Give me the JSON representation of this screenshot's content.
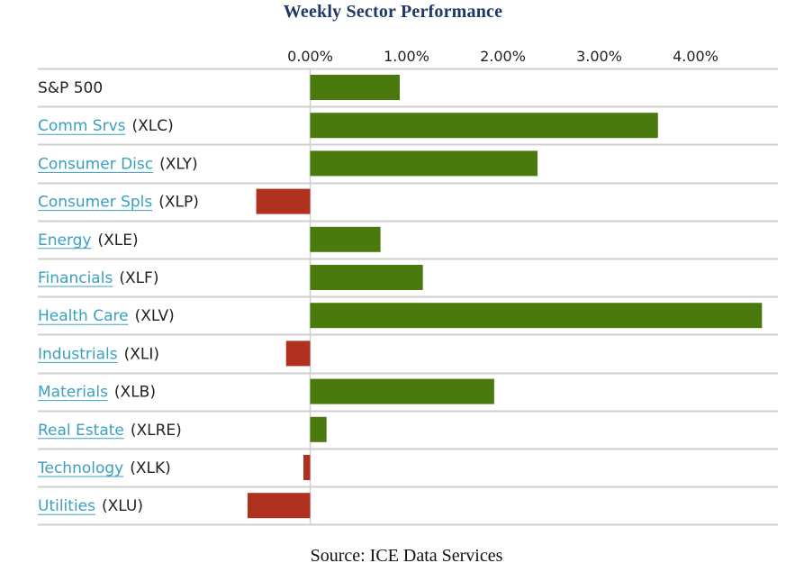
{
  "chart_data": {
    "type": "bar",
    "orientation": "horizontal",
    "title": "Weekly Sector Performance",
    "source": "Source: ICE Data Services",
    "xlim": [
      -0.03,
      0.0485
    ],
    "xticks": [
      0.0,
      0.01,
      0.02,
      0.03,
      0.04
    ],
    "xtick_labels": [
      "0.00%",
      "1.00%",
      "2.00%",
      "3.00%",
      "4.00%"
    ],
    "positive_color": "#4a7a0e",
    "negative_color": "#b0301f",
    "link_color": "#3aa0c0",
    "categories": [
      {
        "name": "S&P 500",
        "ticker": "",
        "linked": false,
        "value": 0.0093
      },
      {
        "name": "Comm Srvs",
        "ticker": "(XLC)",
        "linked": true,
        "value": 0.0361
      },
      {
        "name": "Consumer Disc",
        "ticker": "(XLY)",
        "linked": true,
        "value": 0.0236
      },
      {
        "name": "Consumer Spls",
        "ticker": "(XLP)",
        "linked": true,
        "value": -0.0056
      },
      {
        "name": "Energy",
        "ticker": "(XLE)",
        "linked": true,
        "value": 0.0073
      },
      {
        "name": "Financials",
        "ticker": "(XLF)",
        "linked": true,
        "value": 0.0117
      },
      {
        "name": "Health Care",
        "ticker": "(XLV)",
        "linked": true,
        "value": 0.0469
      },
      {
        "name": "Industrials",
        "ticker": "(XLI)",
        "linked": true,
        "value": -0.0025
      },
      {
        "name": "Materials",
        "ticker": "(XLB)",
        "linked": true,
        "value": 0.0191
      },
      {
        "name": "Real Estate",
        "ticker": "(XLRE)",
        "linked": true,
        "value": 0.0017
      },
      {
        "name": "Technology",
        "ticker": "(XLK)",
        "linked": true,
        "value": -0.0007
      },
      {
        "name": "Utilities",
        "ticker": "(XLU)",
        "linked": true,
        "value": -0.0065
      }
    ]
  }
}
